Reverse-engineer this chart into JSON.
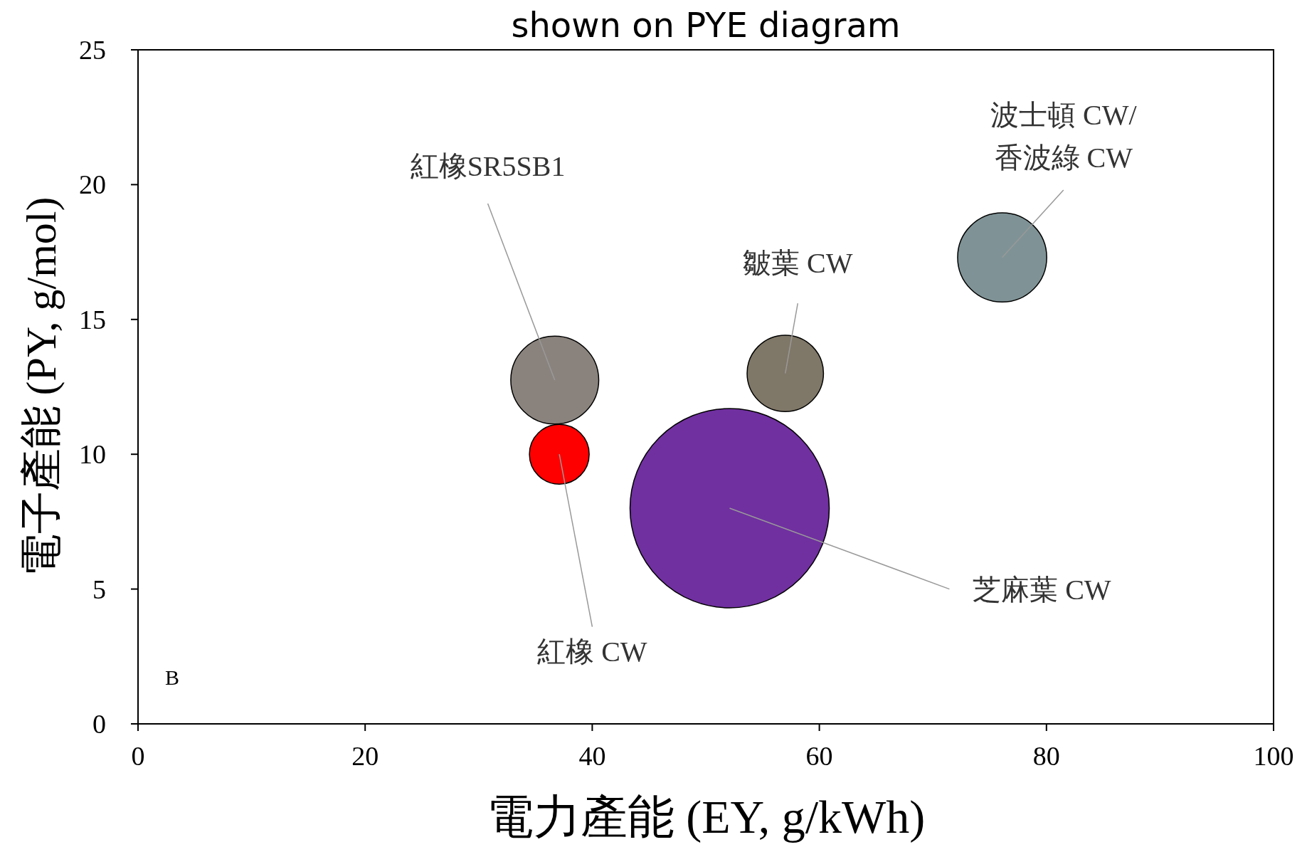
{
  "chart_data": {
    "type": "bubble",
    "title": "shown on PYE diagram",
    "xlabel": "電力產能 (EY, g/kWh)",
    "ylabel": "電子產能 (PY, g/mol)",
    "xlim": [
      0,
      100
    ],
    "xticks": [
      0,
      20,
      40,
      60,
      80,
      100
    ],
    "ylim": [
      0,
      25
    ],
    "yticks": [
      0,
      5,
      10,
      15,
      20,
      25
    ],
    "grid": false,
    "series": [
      {
        "name": "紅橡SR5SB1",
        "color": "#8a837d",
        "x": [
          36.7
        ],
        "values": [
          12.75
        ],
        "sizes": [
          0.195
        ]
      },
      {
        "name": "紅橡 CW",
        "color": "#ff0000",
        "x": [
          37.1
        ],
        "values": [
          10.0
        ],
        "sizes": [
          0.09
        ]
      },
      {
        "name": "芝麻葉 CW",
        "color": "#7030a0",
        "x": [
          52.1
        ],
        "values": [
          8.0
        ],
        "sizes": [
          1
        ]
      },
      {
        "name": "皺葉 CW",
        "color": "#7f7767",
        "x": [
          57.0
        ],
        "values": [
          13.0
        ],
        "sizes": [
          0.147
        ]
      },
      {
        "name": "波士頓 CW/\n香波綠 CW",
        "color": "#7f9396",
        "x": [
          76.1
        ],
        "values": [
          17.3
        ],
        "sizes": [
          0.2
        ]
      }
    ],
    "annotations": [
      "B"
    ]
  }
}
